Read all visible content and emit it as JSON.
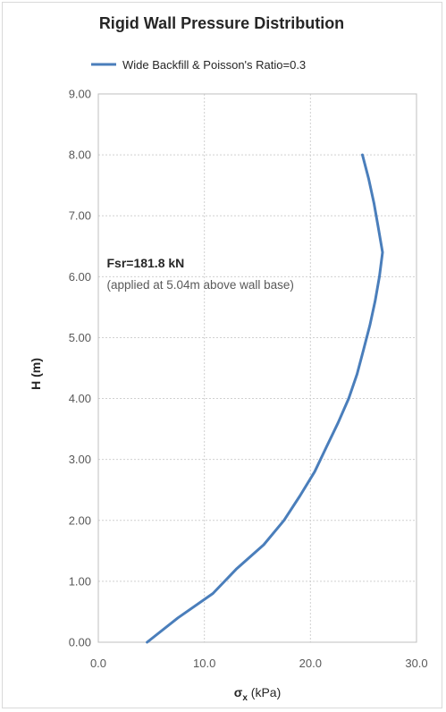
{
  "chart_data": {
    "type": "line",
    "title": "Rigid Wall Pressure Distribution",
    "xlabel": "σₓ (kPa)",
    "xlabel_main": "σ",
    "xlabel_sub": "x",
    "xlabel_unit": " (kPa)",
    "ylabel": "H (m)",
    "xlim": [
      0,
      30
    ],
    "ylim": [
      0,
      9
    ],
    "x_ticks": [
      "0.0",
      "10.0",
      "20.0",
      "30.0"
    ],
    "y_ticks": [
      "0.00",
      "1.00",
      "2.00",
      "3.00",
      "4.00",
      "5.00",
      "6.00",
      "7.00",
      "8.00",
      "9.00"
    ],
    "grid": true,
    "legend_position": "top",
    "line_color": "#4a7ebb",
    "series": [
      {
        "name": "Wide Backfill & Poisson's Ratio=0.3",
        "x": [
          4.6,
          7.5,
          10.8,
          13.0,
          15.6,
          17.5,
          19.0,
          20.4,
          21.5,
          22.6,
          23.6,
          24.4,
          25.0,
          25.6,
          26.1,
          26.5,
          26.8,
          26.4,
          26.0,
          25.5,
          24.9
        ],
        "y": [
          0.0,
          0.4,
          0.8,
          1.2,
          1.6,
          2.0,
          2.4,
          2.8,
          3.2,
          3.6,
          4.0,
          4.4,
          4.8,
          5.2,
          5.6,
          6.0,
          6.4,
          6.8,
          7.2,
          7.6,
          8.0
        ]
      }
    ],
    "annotations": [
      {
        "text": "Fsr=181.8 kN",
        "x": 0.8,
        "y": 6.15
      },
      {
        "text": "(applied at 5.04m above wall base)",
        "x": 0.8,
        "y": 5.8
      }
    ]
  }
}
